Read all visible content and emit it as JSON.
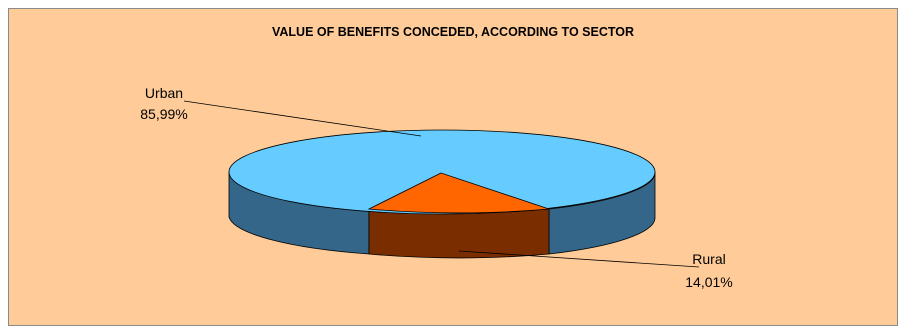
{
  "chart_data": {
    "type": "pie",
    "title": "VALUE OF BENEFITS CONCEDED, ACCORDING TO SECTOR",
    "three_d": true,
    "slices": [
      {
        "label": "Urban",
        "value": 85.99,
        "value_text": "85,99%",
        "top_color": "#66ccff",
        "side_color": "#336688"
      },
      {
        "label": "Rural",
        "value": 14.01,
        "value_text": "14,01%",
        "top_color": "#ff6600",
        "side_color": "#7a2e00"
      }
    ]
  }
}
